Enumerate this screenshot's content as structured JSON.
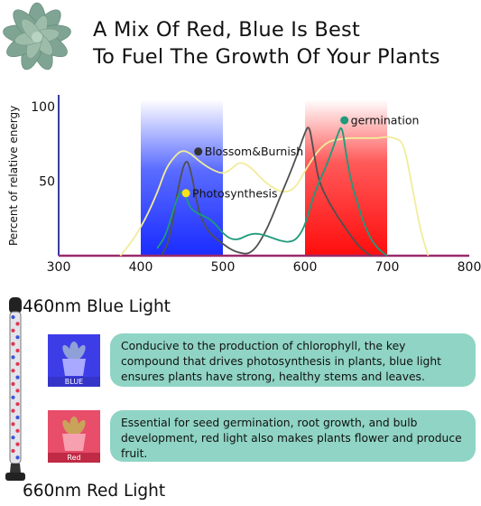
{
  "headline": {
    "line1": "A Mix Of Red, Blue Is Best",
    "line2": "To Fuel The Growth Of Your Plants"
  },
  "chart_data": {
    "type": "line",
    "ylabel": "Percent of relative energy",
    "xlabel": "",
    "xlim": [
      300,
      800
    ],
    "ylim": [
      0,
      105
    ],
    "x_ticks": [
      300,
      400,
      500,
      600,
      700,
      800
    ],
    "y_ticks": [
      50,
      100
    ],
    "bands": [
      {
        "label": "blue",
        "from": 400,
        "to": 500,
        "color": "#2233ff"
      },
      {
        "label": "red",
        "from": 600,
        "to": 700,
        "color": "#ff1a1a"
      }
    ],
    "series": [
      {
        "name": "Photosynthesis",
        "color": "#f2ec9a",
        "x": [
          375,
          390,
          405,
          420,
          430,
          440,
          450,
          460,
          470,
          480,
          490,
          500,
          510,
          520,
          530,
          540,
          550,
          560,
          570,
          580,
          590,
          600,
          610,
          620,
          630,
          640,
          650,
          660,
          670,
          680,
          690,
          700,
          710,
          720,
          730,
          740,
          750
        ],
        "y": [
          0,
          10,
          24,
          42,
          58,
          66,
          71,
          69,
          64,
          60,
          57,
          55,
          58,
          63,
          61,
          56,
          50,
          46,
          43,
          43,
          47,
          57,
          66,
          73,
          77,
          78,
          79,
          79,
          79,
          79,
          79,
          80,
          79,
          76,
          48,
          18,
          0
        ]
      },
      {
        "name": "Blossom&Burnish",
        "color": "#505050",
        "x": [
          425,
          435,
          445,
          455,
          462,
          470,
          480,
          490,
          500,
          510,
          520,
          530,
          540,
          550,
          560,
          570,
          580,
          590,
          600,
          605,
          610,
          615,
          620,
          630,
          640,
          650,
          660,
          670,
          680
        ],
        "y": [
          0,
          10,
          45,
          67,
          55,
          30,
          18,
          12,
          8,
          4,
          2,
          1,
          5,
          14,
          26,
          40,
          53,
          67,
          83,
          88,
          72,
          55,
          46,
          35,
          26,
          18,
          10,
          4,
          0
        ]
      },
      {
        "name": "germination",
        "color": "#1f9a7a",
        "x": [
          420,
          430,
          440,
          445,
          450,
          455,
          460,
          470,
          480,
          490,
          500,
          510,
          520,
          530,
          540,
          550,
          560,
          570,
          580,
          590,
          600,
          610,
          620,
          630,
          640,
          645,
          650,
          655,
          660,
          665,
          670,
          680,
          690,
          700
        ],
        "y": [
          5,
          13,
          31,
          40,
          44,
          40,
          32,
          28,
          26,
          22,
          15,
          11,
          11,
          14,
          15,
          14,
          12,
          10,
          9,
          11,
          20,
          40,
          53,
          66,
          82,
          88,
          68,
          53,
          42,
          34,
          24,
          11,
          4,
          0
        ]
      }
    ],
    "annotations": [
      {
        "text": "germination",
        "x": 648,
        "y": 91,
        "dot_color": "#1f9a7a"
      },
      {
        "text": "Blossom&Burnish",
        "x": 470,
        "y": 70,
        "dot_color": "#333333"
      },
      {
        "text": "Photosynthesis",
        "x": 455,
        "y": 42,
        "dot_color": "#f5e21a"
      }
    ]
  },
  "lights": [
    {
      "title": "460nm Blue Light",
      "thumb_label": "BLUE",
      "text": "Conducive to the production of chlorophyll, the key compound that drives photosynthesis in plants, blue light ensures plants have strong, healthy stems and leaves."
    },
    {
      "title": "660nm Red Light",
      "thumb_label": "Red",
      "text": "Essential for seed germination, root growth, and bulb development, red light  also makes plants flower and produce fruit."
    }
  ],
  "colors": {
    "blue_band": "#2233ff",
    "red_band": "#ff1a1a",
    "desc_bg": "#8fd4c4",
    "axis_x": "#9a2a6a",
    "axis_y": "#3a3aa0"
  }
}
